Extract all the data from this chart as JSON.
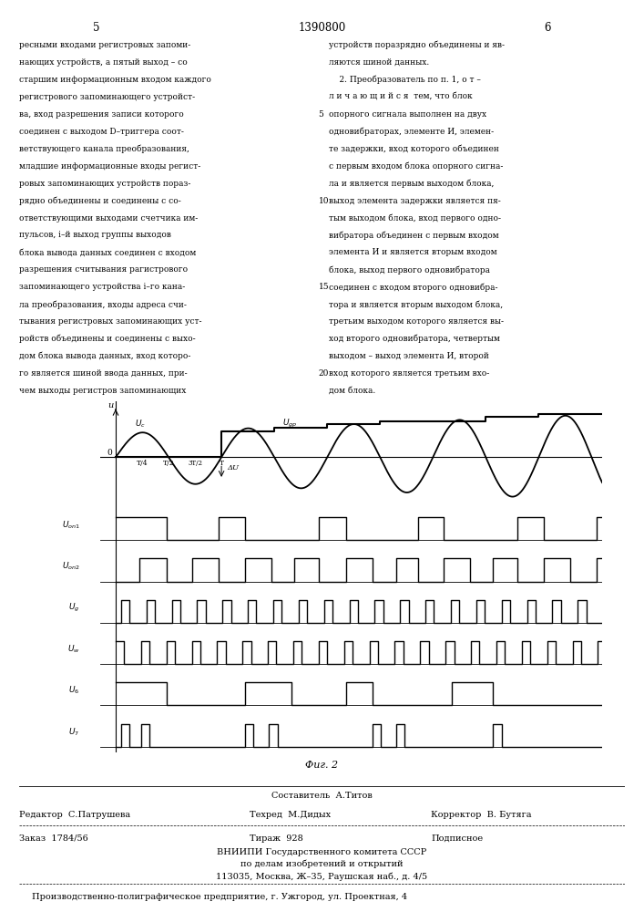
{
  "page_num_left": "5",
  "patent_num": "1390800",
  "page_num_right": "6",
  "text_left_lines": [
    "ресными входами регистровых запоми-",
    "нающих устройств, а пятый выход – со",
    "старшим информационным входом каждого",
    "регистрового запоминающего устройст-",
    "ва, вход разрешения записи которого",
    "соединен с выходом D–триггера соот-",
    "ветствующего канала преобразования,",
    "младшие информационные входы регист-",
    "ровых запоминающих устройств пораз-",
    "рядно объединены и соединены с со-",
    "ответствующими выходами счетчика им-",
    "пульсов, i–й выход группы выходов",
    "блока вывода данных соединен с входом",
    "разрешения считывания рагистрового",
    "запоминающего устройства i–го кана-",
    "ла преобразования, входы адреса счи-",
    "тывания регистровых запоминающих уст-",
    "ройств объединены и соединены с выхо-",
    "дом блока вывода данных, вход которо-",
    "го является шиной ввода данных, при-",
    "чем выходы регистров запоминающих"
  ],
  "line_numbers": [
    5,
    10,
    15,
    20
  ],
  "text_right_lines": [
    "устройств поразрядно объединены и яв-",
    "ляются шиной данных.",
    "    2. Преобразователь по п. 1, о т –",
    "л и ч а ю щ и й с я  тем, что блок",
    "опорного сигнала выполнен на двух",
    "одновибраторах, элементе И, элемен-",
    "те задержки, вход которого объединен",
    "с первым входом блока опорного сигна-",
    "ла и является первым выходом блока,",
    "выход элемента задержки является пя-",
    "тым выходом блока, вход первого одно-",
    "вибратора объединен с первым входом",
    "элемента И и является вторым входом",
    "блока, выход первого одновибратора",
    "соединен с входом второго одновибра-",
    "тора и является вторым выходом блока,",
    "третьим выходом которого является вы-",
    "ход второго одновибратора, четвертым",
    "выходом – выход элемента И, второй",
    "вход которого является третьим вхо-",
    "дом блока."
  ],
  "fig_caption": "Фиг. 2",
  "footer_composer": "Составитель  А.Титов",
  "footer_editor_label": "Редактор  С.Патрушева",
  "footer_techred_label": "Техред  М.Дидых",
  "footer_corrector_label": "Корректор  В. Бутяга",
  "footer_order": "Заказ  1784/56",
  "footer_tirazh": "Тираж  928",
  "footer_podp": "Подписное",
  "footer_vniipи": "ВНИИПИ Государственного комитета СССР",
  "footer_po_delam": "по делам изобретений и открытий",
  "footer_addr": "113035, Москва, Ж–35, Раушская наб., д. 4/5",
  "footer_predpr": "Производственно-полиграфическое предприятие, г. Ужгород, ул. Проектная, 4"
}
